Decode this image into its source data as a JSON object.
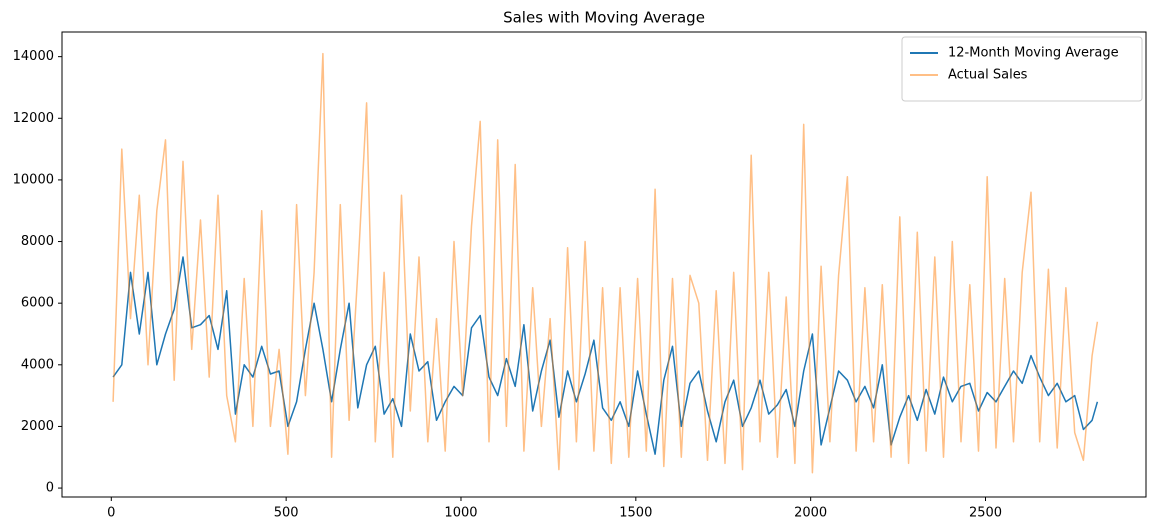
{
  "chart_data": {
    "type": "line",
    "title": "Sales with Moving Average",
    "x": [
      5,
      30,
      55,
      80,
      105,
      130,
      155,
      180,
      205,
      230,
      255,
      280,
      305,
      330,
      355,
      380,
      405,
      430,
      455,
      480,
      505,
      530,
      555,
      580,
      605,
      630,
      655,
      680,
      705,
      730,
      755,
      780,
      805,
      830,
      855,
      880,
      905,
      930,
      955,
      980,
      1005,
      1030,
      1055,
      1080,
      1105,
      1130,
      1155,
      1180,
      1205,
      1230,
      1255,
      1280,
      1305,
      1330,
      1355,
      1380,
      1405,
      1430,
      1455,
      1480,
      1505,
      1530,
      1555,
      1580,
      1605,
      1630,
      1655,
      1680,
      1705,
      1730,
      1755,
      1780,
      1805,
      1830,
      1855,
      1880,
      1905,
      1930,
      1955,
      1980,
      2005,
      2030,
      2055,
      2080,
      2105,
      2130,
      2155,
      2180,
      2205,
      2230,
      2255,
      2280,
      2305,
      2330,
      2355,
      2380,
      2405,
      2430,
      2455,
      2480,
      2505,
      2530,
      2555,
      2580,
      2605,
      2630,
      2655,
      2680,
      2705,
      2730,
      2755,
      2780,
      2805,
      2820
    ],
    "series": [
      {
        "name": "12-Month Moving Average",
        "color": "#1f77b4",
        "values": [
          3600,
          4000,
          7000,
          5000,
          7000,
          4000,
          5000,
          5800,
          7500,
          5200,
          5300,
          5600,
          4500,
          6400,
          2400,
          4000,
          3600,
          4600,
          3700,
          3800,
          2000,
          2800,
          4500,
          6000,
          4500,
          2800,
          4500,
          6000,
          2600,
          4000,
          4600,
          2400,
          2900,
          2000,
          5000,
          3800,
          4100,
          2200,
          2800,
          3300,
          3000,
          5200,
          5600,
          3600,
          3000,
          4200,
          3300,
          5300,
          2500,
          3800,
          4800,
          2300,
          3800,
          2800,
          3700,
          4800,
          2600,
          2200,
          2800,
          2000,
          3800,
          2400,
          1100,
          3500,
          4600,
          2000,
          3400,
          3800,
          2500,
          1500,
          2800,
          3500,
          2000,
          2600,
          3500,
          2400,
          2700,
          3200,
          2000,
          3800,
          5000,
          1400,
          2600,
          3800,
          3500,
          2800,
          3300,
          2600,
          4000,
          1400,
          2300,
          3000,
          2200,
          3200,
          2400,
          3600,
          2800,
          3300,
          3400,
          2500,
          3100,
          2800,
          3300,
          3800,
          3400,
          4300,
          3600,
          3000,
          3400,
          2800,
          3000,
          1900,
          2200,
          2800
        ]
      },
      {
        "name": "Actual Sales",
        "color": "rgba(255,127,14,0.5)",
        "values": [
          2800,
          11000,
          5500,
          9500,
          4000,
          9000,
          11300,
          3500,
          10600,
          4500,
          8700,
          3600,
          9500,
          3000,
          1500,
          6800,
          2000,
          9000,
          2000,
          4500,
          1100,
          9200,
          3000,
          7000,
          14100,
          1000,
          9200,
          2200,
          7000,
          12500,
          1500,
          7000,
          1000,
          9500,
          2500,
          7500,
          1500,
          5500,
          1200,
          8000,
          3000,
          8500,
          11900,
          1500,
          11300,
          2000,
          10500,
          1200,
          6500,
          2000,
          5500,
          600,
          7800,
          1500,
          8000,
          1200,
          6500,
          800,
          6500,
          1000,
          6800,
          1200,
          9700,
          700,
          6800,
          1000,
          6900,
          6000,
          900,
          6400,
          800,
          7000,
          600,
          10800,
          1500,
          7000,
          1000,
          6200,
          800,
          11800,
          500,
          7200,
          1500,
          6900,
          10100,
          1200,
          6500,
          1500,
          6600,
          1000,
          8800,
          800,
          8300,
          1200,
          7500,
          1000,
          8000,
          1500,
          6600,
          1200,
          10100,
          1300,
          6800,
          1500,
          7000,
          9600,
          1500,
          7100,
          1300,
          6500,
          1800,
          900,
          4300,
          5400
        ]
      }
    ],
    "xlim": [
      -141,
      2959
    ],
    "ylim": [
      -290,
      14800
    ],
    "xticks": [
      0,
      500,
      1000,
      1500,
      2000,
      2500
    ],
    "yticks": [
      0,
      2000,
      4000,
      6000,
      8000,
      10000,
      12000,
      14000
    ],
    "legend": "upper right"
  }
}
